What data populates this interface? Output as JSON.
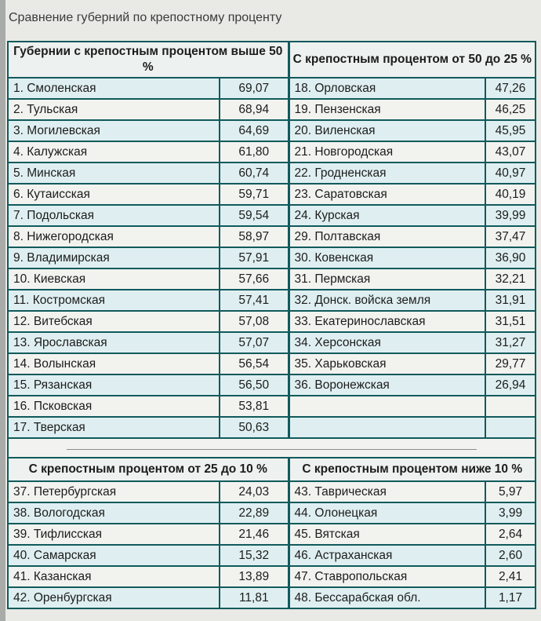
{
  "title": "Сравнение губерний по крепостному проценту",
  "colors": {
    "border": "#115a5c",
    "row_cyan": "#dfeff1",
    "row_gray": "#f2f3ef",
    "header_bg": "#edf1ef",
    "page_bg": "#e9e9e6",
    "edge_strip": "#a8aba8",
    "divider_line": "#8d8d8d",
    "text": "#1c1c1c"
  },
  "sections": {
    "top_left": {
      "header": "Губернии с крепостным процентом выше 50 %",
      "rows": [
        [
          "1. Смоленская",
          "69,07"
        ],
        [
          "2. Тульская",
          "68,94"
        ],
        [
          "3. Могилевская",
          "64,69"
        ],
        [
          "4. Калужская",
          "61,80"
        ],
        [
          "5. Минская",
          "60,74"
        ],
        [
          "6. Кутаисская",
          "59,71"
        ],
        [
          "7. Подольская",
          "59,54"
        ],
        [
          "8. Нижегородская",
          "58,97"
        ],
        [
          "9. Владимирская",
          "57,91"
        ],
        [
          "10. Киевская",
          "57,66"
        ],
        [
          "11. Костромская",
          "57,41"
        ],
        [
          "12. Витебская",
          "57,08"
        ],
        [
          "13. Ярославская",
          "57,07"
        ],
        [
          "14. Волынская",
          "56,54"
        ],
        [
          "15. Рязанская",
          "56,50"
        ],
        [
          "16. Псковская",
          "53,81"
        ],
        [
          "17. Тверская",
          "50,63"
        ]
      ]
    },
    "top_right": {
      "header": "С крепостным процентом от 50 до 25 %",
      "rows": [
        [
          "18. Орловская",
          "47,26"
        ],
        [
          "19. Пензенская",
          "46,25"
        ],
        [
          "20. Виленская",
          "45,95"
        ],
        [
          "21. Новгородская",
          "43,07"
        ],
        [
          "22. Гродненская",
          "40,97"
        ],
        [
          "23. Саратовская",
          "40,19"
        ],
        [
          "24. Курская",
          "39,99"
        ],
        [
          "29. Полтавская",
          "37,47"
        ],
        [
          "30. Ковенская",
          "36,90"
        ],
        [
          "31. Пермская",
          "32,21"
        ],
        [
          "32. Донск. войска земля",
          "31,91"
        ],
        [
          "33. Екатеринославская",
          "31,51"
        ],
        [
          "34. Херсонская",
          "31,27"
        ],
        [
          "35. Харьковская",
          "29,77"
        ],
        [
          "36. Воронежская",
          "26,94"
        ],
        [
          "",
          ""
        ],
        [
          "",
          ""
        ]
      ]
    },
    "bottom_left": {
      "header": "С крепостным процентом от 25 до 10 %",
      "rows": [
        [
          "37. Петербургская",
          "24,03"
        ],
        [
          "38. Вологодская",
          "22,89"
        ],
        [
          "39. Тифлисская",
          "21,46"
        ],
        [
          "40. Самарская",
          "15,32"
        ],
        [
          "41. Казанская",
          "13,89"
        ],
        [
          "42. Оренбургская",
          "11,81"
        ]
      ]
    },
    "bottom_right": {
      "header": "С крепостным процентом ниже 10 %",
      "rows": [
        [
          "43. Таврическая",
          "5,97"
        ],
        [
          "44. Олонецкая",
          "3,99"
        ],
        [
          "45. Вятская",
          "2,64"
        ],
        [
          "46. Астраханская",
          "2,60"
        ],
        [
          "47. Ставропольская",
          "2,41"
        ],
        [
          "48. Бессарабская обл.",
          "1,17"
        ]
      ]
    }
  }
}
